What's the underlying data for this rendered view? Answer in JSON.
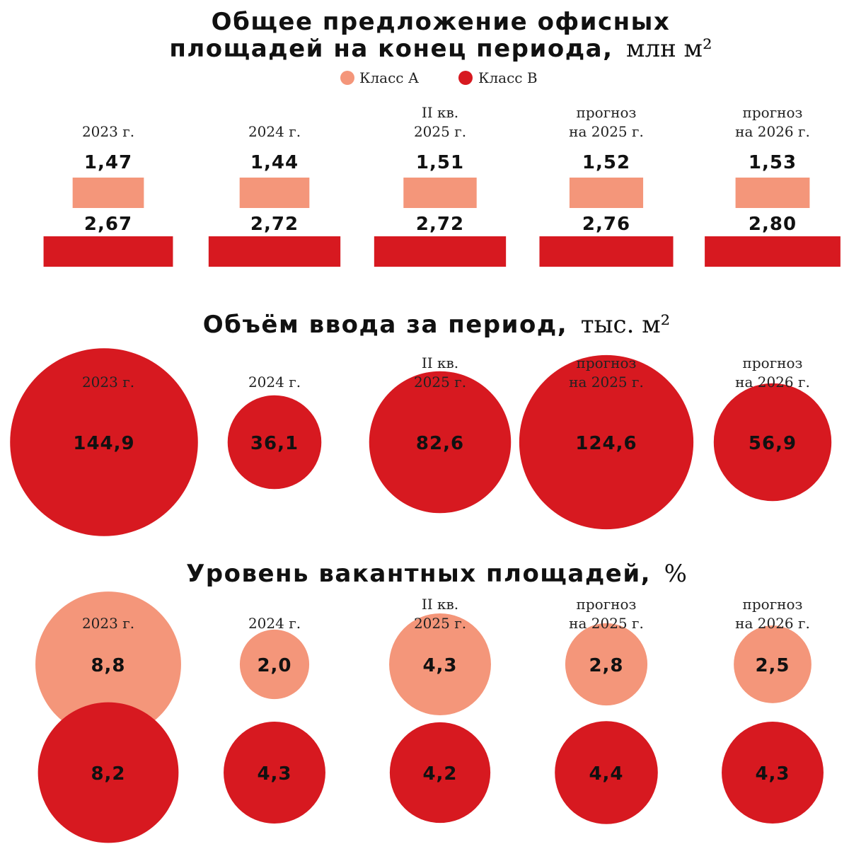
{
  "colors": {
    "class_a": "#F4967A",
    "class_b": "#D71920",
    "text": "#111111"
  },
  "legend": {
    "class_a": "Класс А",
    "class_b": "Класс В"
  },
  "chart_data": [
    {
      "type": "bar",
      "title_bold_line1": "Общее предложение офисных",
      "title_bold_line2": "площадей на конец периода,",
      "title_unit": "млн м²",
      "categories": [
        [
          "2023 г."
        ],
        [
          "2024 г."
        ],
        [
          "II кв.",
          "2025 г."
        ],
        [
          "прогноз",
          "на 2025 г."
        ],
        [
          "прогноз",
          "на 2026 г."
        ]
      ],
      "series": [
        {
          "name": "Класс А",
          "values": [
            1.47,
            1.44,
            1.51,
            1.52,
            1.53
          ],
          "labels": [
            "1,47",
            "1,44",
            "1,51",
            "1,52",
            "1,53"
          ]
        },
        {
          "name": "Класс В",
          "values": [
            2.67,
            2.72,
            2.72,
            2.76,
            2.8
          ],
          "labels": [
            "2,67",
            "2,72",
            "2,72",
            "2,76",
            "2,80"
          ]
        }
      ]
    },
    {
      "type": "bubble",
      "title_bold": "Объём ввода за период,",
      "title_unit": "тыс. м²",
      "categories": [
        [
          "2023 г."
        ],
        [
          "2024 г."
        ],
        [
          "II кв.",
          "2025 г."
        ],
        [
          "прогноз",
          "на 2025 г."
        ],
        [
          "прогноз",
          "на 2026 г."
        ]
      ],
      "values": [
        144.9,
        36.1,
        82.6,
        124.6,
        56.9
      ],
      "labels": [
        "144,9",
        "36,1",
        "82,6",
        "124,6",
        "56,9"
      ]
    },
    {
      "type": "bubble",
      "title_bold": "Уровень вакантных площадей,",
      "title_unit": "%",
      "categories": [
        [
          "2023 г."
        ],
        [
          "2024 г."
        ],
        [
          "II кв.",
          "2025 г."
        ],
        [
          "прогноз",
          "на 2025 г."
        ],
        [
          "прогноз",
          "на 2026 г."
        ]
      ],
      "series": [
        {
          "name": "Класс А",
          "values": [
            8.8,
            2.0,
            4.3,
            2.8,
            2.5
          ],
          "labels": [
            "8,8",
            "2,0",
            "4,3",
            "2,8",
            "2,5"
          ]
        },
        {
          "name": "Класс В",
          "values": [
            8.2,
            4.3,
            4.2,
            4.4,
            4.3
          ],
          "labels": [
            "8,2",
            "4,3",
            "4,2",
            "4,4",
            "4,3"
          ]
        }
      ]
    }
  ]
}
